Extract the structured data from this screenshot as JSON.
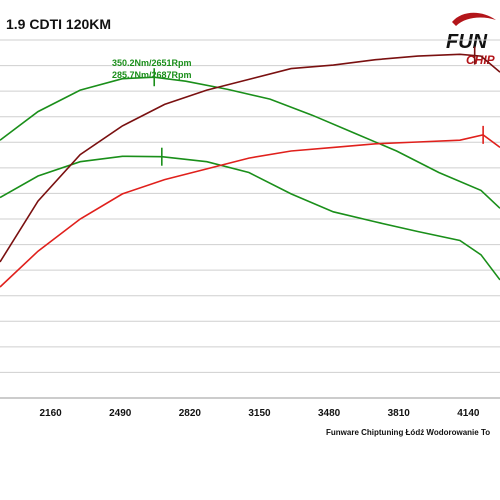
{
  "header": {
    "title": "1.9 CDTI 120KM"
  },
  "logo": {
    "text_top": "FUN",
    "text_bottom": "CHIP"
  },
  "footer": {
    "credit": "Funware Chiptuning Łódź Wodorowanie To"
  },
  "colors": {
    "green": "#1a8f1a",
    "darkred": "#7a1010",
    "red": "#e0201c",
    "grid": "#cfcfcf"
  },
  "chart_data": {
    "type": "line",
    "xlabel": "",
    "ylabel": "",
    "xlim": [
      1920,
      4290
    ],
    "ylim": [
      0,
      1
    ],
    "grid": true,
    "ticks": [
      2160,
      2490,
      2820,
      3150,
      3480,
      3810,
      4140
    ],
    "annotations": [
      {
        "text": "350.2Nm/2651Rpm",
        "series": 0
      },
      {
        "text": "285.7Nm/2687Rpm",
        "series": 1
      }
    ],
    "series": [
      {
        "color": "#1a8f1a",
        "marker_x": 2651,
        "points": [
          [
            1920,
            0.72
          ],
          [
            2100,
            0.8
          ],
          [
            2300,
            0.86
          ],
          [
            2500,
            0.892
          ],
          [
            2651,
            0.896
          ],
          [
            2800,
            0.885
          ],
          [
            3000,
            0.862
          ],
          [
            3200,
            0.835
          ],
          [
            3400,
            0.79
          ],
          [
            3600,
            0.74
          ],
          [
            3800,
            0.69
          ],
          [
            4000,
            0.63
          ],
          [
            4200,
            0.58
          ],
          [
            4290,
            0.53
          ]
        ]
      },
      {
        "color": "#1a8f1a",
        "marker_x": 2687,
        "points": [
          [
            1920,
            0.56
          ],
          [
            2100,
            0.62
          ],
          [
            2300,
            0.66
          ],
          [
            2500,
            0.675
          ],
          [
            2687,
            0.674
          ],
          [
            2900,
            0.66
          ],
          [
            3100,
            0.63
          ],
          [
            3300,
            0.57
          ],
          [
            3500,
            0.52
          ],
          [
            3700,
            0.492
          ],
          [
            3900,
            0.465
          ],
          [
            4100,
            0.44
          ],
          [
            4200,
            0.4
          ],
          [
            4290,
            0.33
          ]
        ]
      },
      {
        "color": "#7a1010",
        "marker_x": 4170,
        "points": [
          [
            1920,
            0.38
          ],
          [
            2100,
            0.55
          ],
          [
            2300,
            0.68
          ],
          [
            2500,
            0.76
          ],
          [
            2700,
            0.82
          ],
          [
            2900,
            0.86
          ],
          [
            3100,
            0.89
          ],
          [
            3300,
            0.92
          ],
          [
            3500,
            0.93
          ],
          [
            3700,
            0.945
          ],
          [
            3900,
            0.955
          ],
          [
            4100,
            0.96
          ],
          [
            4200,
            0.955
          ],
          [
            4290,
            0.91
          ]
        ]
      },
      {
        "color": "#e0201c",
        "marker_x": 4210,
        "points": [
          [
            1920,
            0.31
          ],
          [
            2100,
            0.41
          ],
          [
            2300,
            0.5
          ],
          [
            2500,
            0.57
          ],
          [
            2700,
            0.61
          ],
          [
            2900,
            0.64
          ],
          [
            3100,
            0.67
          ],
          [
            3300,
            0.69
          ],
          [
            3500,
            0.7
          ],
          [
            3700,
            0.71
          ],
          [
            3900,
            0.715
          ],
          [
            4100,
            0.72
          ],
          [
            4210,
            0.735
          ],
          [
            4290,
            0.7
          ]
        ]
      }
    ]
  }
}
